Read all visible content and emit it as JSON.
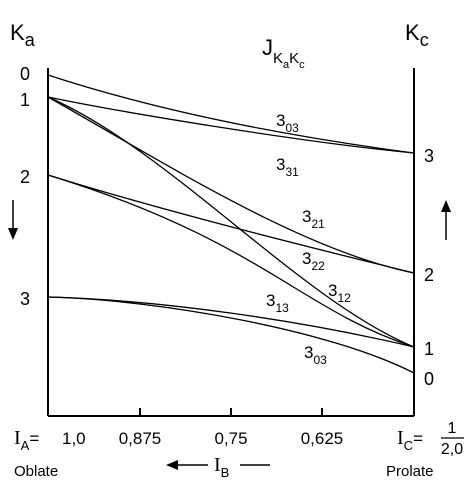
{
  "headers": {
    "left_K": "K",
    "left_sub": "a",
    "title_J": "J",
    "title_sub1": "K",
    "title_sub1_sub": "a",
    "title_sub2": "K",
    "title_sub2_sub": "c",
    "right_K": "K",
    "right_sub": "c"
  },
  "left_levels": [
    "0",
    "1",
    "2",
    "3"
  ],
  "right_levels": [
    "3",
    "2",
    "1",
    "0"
  ],
  "curve_labels": [
    {
      "main": "3",
      "sub": "03"
    },
    {
      "main": "3",
      "sub": "31"
    },
    {
      "main": "3",
      "sub": "21"
    },
    {
      "main": "3",
      "sub": "22"
    },
    {
      "main": "3",
      "sub": "12"
    },
    {
      "main": "3",
      "sub": "13"
    },
    {
      "main": "3",
      "sub": "03"
    }
  ],
  "axis": {
    "ia_label": "I",
    "ia_sub": "A",
    "ia_eq": "=",
    "ticks": [
      "1,0",
      "0,875",
      "0,75",
      "0,625"
    ],
    "ic_label": "I",
    "ic_sub": "C",
    "ic_eq": "=",
    "ic_num": "1",
    "ic_den": "2,0",
    "ib_label": "I",
    "ib_sub": "B",
    "oblate": "Oblate",
    "prolate": "Prolate"
  },
  "colors": {
    "ink": "#000000",
    "background": "#ffffff"
  }
}
